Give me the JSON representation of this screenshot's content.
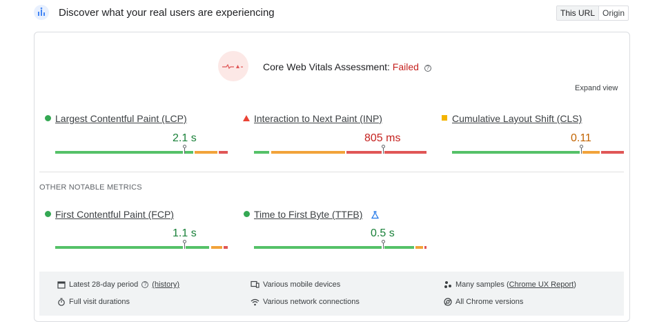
{
  "header": {
    "title": "Discover what your real users are experiencing",
    "toggle": [
      "This URL",
      "Origin"
    ]
  },
  "assessment": {
    "label": "Core Web Vitals Assessment:",
    "status": "Failed",
    "help_icon": "?",
    "expand_view": "Expand view"
  },
  "core_metrics": [
    {
      "name": "Largest Contentful Paint (LCP)",
      "value": "2.1 s",
      "rating": "good",
      "marker_icon": "green-circle-icon"
    },
    {
      "name": "Interaction to Next Paint (INP)",
      "value": "805 ms",
      "rating": "poor",
      "marker_icon": "red-triangle-icon"
    },
    {
      "name": "Cumulative Layout Shift (CLS)",
      "value": "0.11",
      "rating": "needs-improvement",
      "marker_icon": "orange-square-icon"
    }
  ],
  "other_section_title": "OTHER NOTABLE METRICS",
  "other_metrics": [
    {
      "name": "First Contentful Paint (FCP)",
      "value": "1.1 s",
      "rating": "good",
      "marker_icon": "green-circle-icon"
    },
    {
      "name": "Time to First Byte (TTFB)",
      "value": "0.5 s",
      "rating": "good",
      "marker_icon": "green-circle-icon",
      "extra_icon": "experimental-flask-icon"
    }
  ],
  "footer": {
    "period": "Latest 28-day period",
    "history_link": "(history)",
    "devices": "Various mobile devices",
    "samples_prefix": "Many samples (",
    "samples_link": "Chrome UX Report",
    "samples_suffix": ")",
    "durations": "Full visit durations",
    "network": "Various network connections",
    "versions": "All Chrome versions"
  },
  "colors": {
    "good": "#55c168",
    "needs_improvement": "#f2a33a",
    "poor": "#e05656",
    "failed_text": "#c5221f"
  }
}
